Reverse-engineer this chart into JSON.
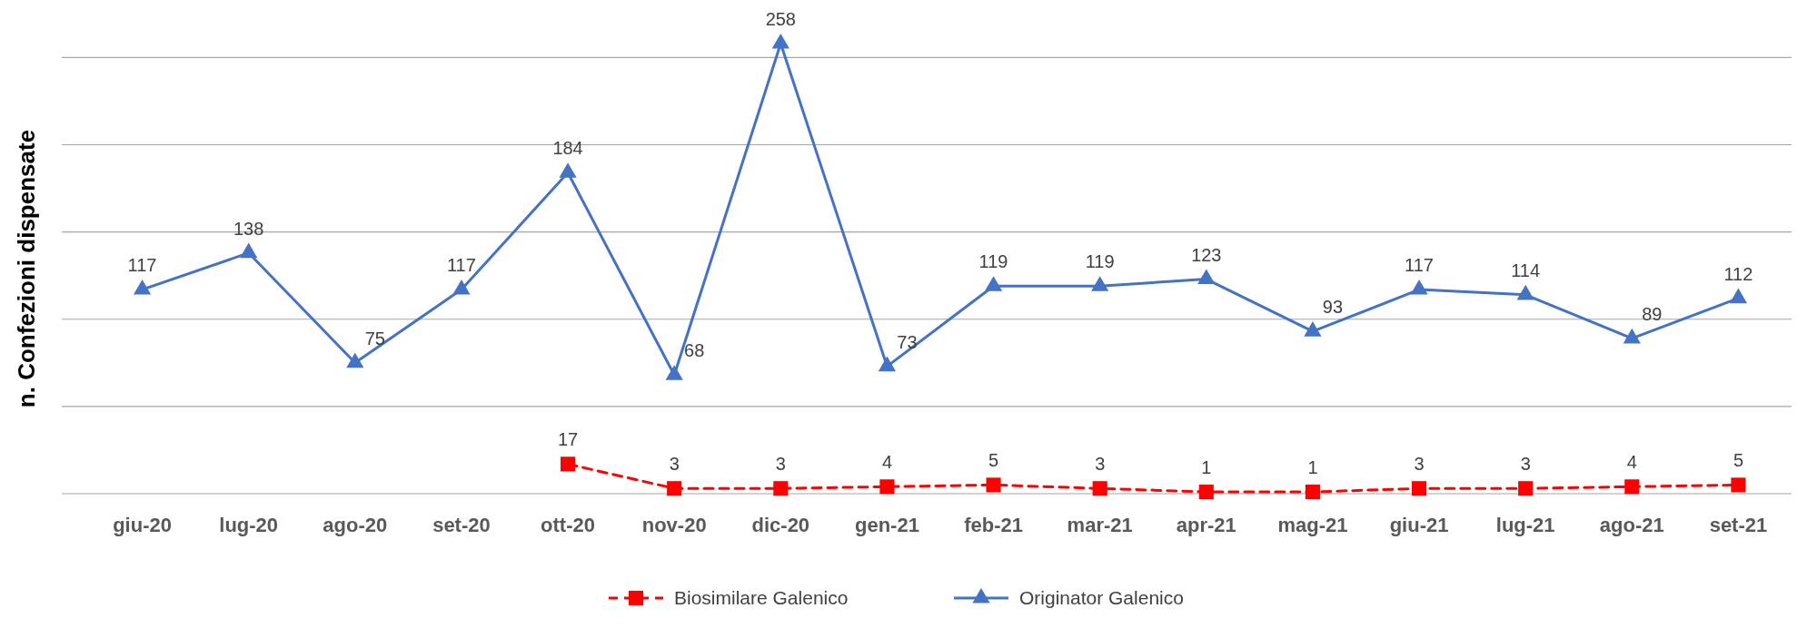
{
  "chart_data": {
    "type": "line",
    "ylabel": "n. Confezioni dispensate",
    "categories": [
      "giu-20",
      "lug-20",
      "ago-20",
      "set-20",
      "ott-20",
      "nov-20",
      "dic-20",
      "gen-21",
      "feb-21",
      "mar-21",
      "apr-21",
      "mag-21",
      "giu-21",
      "lug-21",
      "ago-21",
      "set-21"
    ],
    "series": [
      {
        "name": "Biosimilare Galenico",
        "color": "#ff0000",
        "marker": "square",
        "line_style": "dashed",
        "values": [
          null,
          null,
          null,
          null,
          17,
          3,
          3,
          4,
          5,
          3,
          1,
          1,
          3,
          3,
          4,
          5
        ]
      },
      {
        "name": "Originator Galenico",
        "color": "#4472c4",
        "marker": "triangle",
        "line_style": "solid",
        "values": [
          117,
          138,
          75,
          117,
          184,
          68,
          258,
          73,
          119,
          119,
          123,
          93,
          117,
          114,
          89,
          112
        ]
      }
    ],
    "yticks": [
      {
        "value": 0,
        "label": null
      },
      {
        "value": 50,
        "label": null
      },
      {
        "value": 100,
        "label": null
      },
      {
        "value": 150,
        "label": null
      },
      {
        "value": 200,
        "label": null
      },
      {
        "value": 250,
        "label": null
      }
    ],
    "tick_labels": "x",
    "grid": "y",
    "legend": "bottom",
    "data_labels": true
  }
}
